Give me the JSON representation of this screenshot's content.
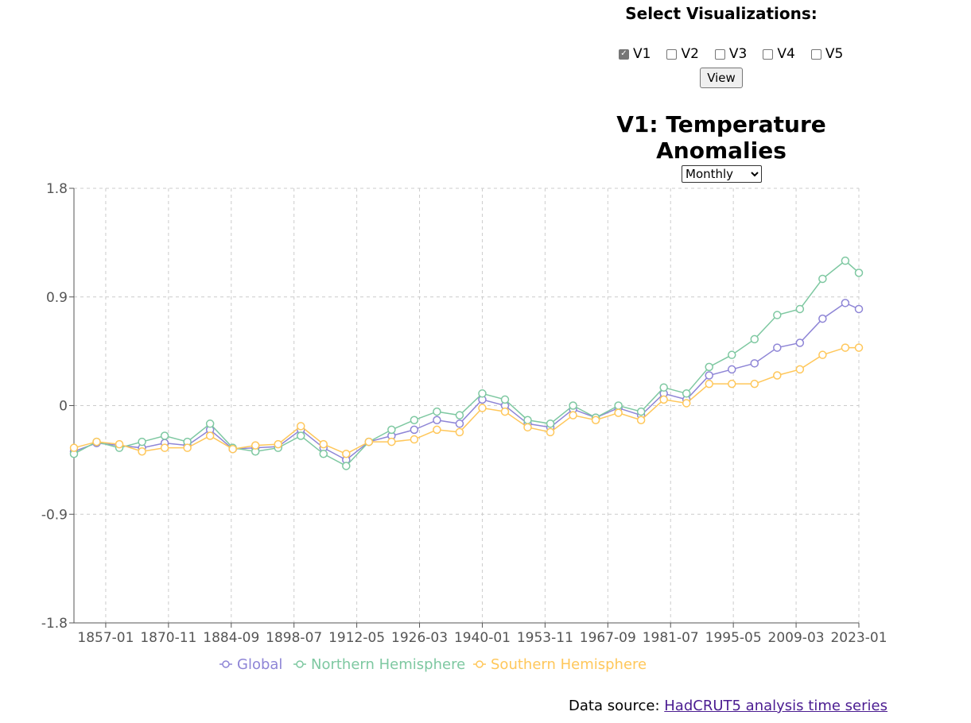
{
  "controls": {
    "heading": "Select Visualizations:",
    "checkboxes": [
      {
        "label": "V1",
        "checked": true
      },
      {
        "label": "V2",
        "checked": false
      },
      {
        "label": "V3",
        "checked": false
      },
      {
        "label": "V4",
        "checked": false
      },
      {
        "label": "V5",
        "checked": false
      }
    ],
    "view_label": "View",
    "interval_options": [
      "Monthly"
    ],
    "interval_selected": "Monthly"
  },
  "chart_data": {
    "type": "line",
    "title": "V1: Temperature Anomalies",
    "xlabel": "",
    "ylabel": "",
    "xlim": [
      "1850-01",
      "2023-01"
    ],
    "ylim": [
      -1.8,
      1.8
    ],
    "yticks": [
      -1.8,
      -0.9,
      0,
      0.9,
      1.8
    ],
    "yticks_labels": [
      "-1.8",
      "-0.9",
      "0",
      "0.9",
      "1.8"
    ],
    "xticks": [
      "1857-01",
      "1870-11",
      "1884-09",
      "1898-07",
      "1912-05",
      "1926-03",
      "1940-01",
      "1953-11",
      "1967-09",
      "1981-07",
      "1995-05",
      "2009-03",
      "2023-01"
    ],
    "grid": true,
    "legend_position": "bottom",
    "series_colors": {
      "global": "#8e85d6",
      "north": "#7ec8a1",
      "south": "#ffc75a"
    },
    "x_yearly": [
      1850,
      1855,
      1860,
      1865,
      1870,
      1875,
      1880,
      1885,
      1890,
      1895,
      1900,
      1905,
      1910,
      1915,
      1920,
      1925,
      1930,
      1935,
      1940,
      1945,
      1950,
      1955,
      1960,
      1965,
      1970,
      1975,
      1980,
      1985,
      1990,
      1995,
      2000,
      2005,
      2010,
      2015,
      2020,
      2023
    ],
    "series": [
      {
        "name": "Global",
        "values": [
          -0.38,
          -0.31,
          -0.33,
          -0.35,
          -0.31,
          -0.33,
          -0.2,
          -0.36,
          -0.35,
          -0.34,
          -0.2,
          -0.35,
          -0.45,
          -0.3,
          -0.25,
          -0.2,
          -0.12,
          -0.15,
          0.05,
          0.0,
          -0.15,
          -0.18,
          -0.03,
          -0.1,
          -0.02,
          -0.08,
          0.1,
          0.05,
          0.25,
          0.3,
          0.35,
          0.48,
          0.52,
          0.72,
          0.85,
          0.8
        ]
      },
      {
        "name": "Northern Hemisphere",
        "values": [
          -0.4,
          -0.3,
          -0.35,
          -0.3,
          -0.25,
          -0.3,
          -0.15,
          -0.35,
          -0.38,
          -0.35,
          -0.25,
          -0.4,
          -0.5,
          -0.3,
          -0.2,
          -0.12,
          -0.05,
          -0.08,
          0.1,
          0.05,
          -0.12,
          -0.15,
          0.0,
          -0.1,
          0.0,
          -0.05,
          0.15,
          0.1,
          0.32,
          0.42,
          0.55,
          0.75,
          0.8,
          1.05,
          1.2,
          1.1
        ]
      },
      {
        "name": "Southern Hemisphere",
        "values": [
          -0.35,
          -0.3,
          -0.32,
          -0.38,
          -0.35,
          -0.35,
          -0.25,
          -0.36,
          -0.33,
          -0.32,
          -0.17,
          -0.32,
          -0.4,
          -0.3,
          -0.3,
          -0.28,
          -0.2,
          -0.22,
          -0.02,
          -0.05,
          -0.18,
          -0.22,
          -0.08,
          -0.12,
          -0.06,
          -0.12,
          0.05,
          0.02,
          0.18,
          0.18,
          0.18,
          0.25,
          0.3,
          0.42,
          0.48,
          0.48
        ]
      }
    ]
  },
  "source": {
    "prefix": "Data source: ",
    "link_text": "HadCRUT5 analysis time series"
  }
}
